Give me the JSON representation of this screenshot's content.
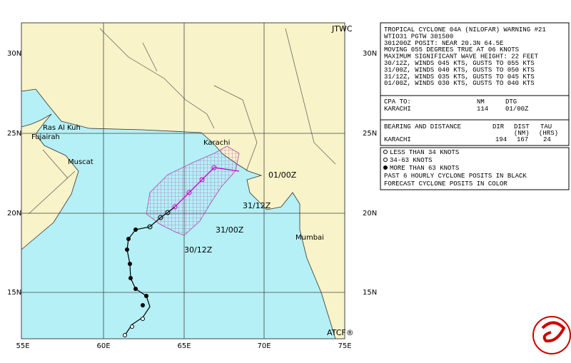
{
  "map": {
    "credit_left": "JTWC",
    "credit_right": "ATCF®",
    "lat_labels": [
      "30N",
      "25N",
      "20N",
      "15N"
    ],
    "lon_labels": [
      "55E",
      "60E",
      "65E",
      "70E",
      "75E"
    ],
    "places": [
      "Ras Al Kuh",
      "Fujairah",
      "Muscat",
      "Karachi",
      "Mumbai"
    ],
    "track_labels": [
      "30/12Z",
      "31/00Z",
      "31/12Z",
      "01/00Z"
    ]
  },
  "info": {
    "lines": [
      "TROPICAL CYCLONE 04A (NILOFAR) WARNING #21",
      "WTIO31 PGTW 301500",
      "301200Z POSIT: NEAR 20.3N 64.5E",
      "MOVING 055 DEGREES TRUE AT 06 KNOTS",
      "MAXIMUM SIGNIFICANT WAVE HEIGHT: 22 FEET",
      "30/12Z, WINDS 045 KTS, GUSTS TO 055 KTS",
      "31/00Z, WINDS 040 KTS, GUSTS TO 050 KTS",
      "31/12Z, WINDS 035 KTS, GUSTS TO 045 KTS",
      "01/00Z, WINDS 030 KTS, GUSTS TO 040 KTS"
    ],
    "cpa": {
      "header": [
        "CPA TO:",
        "NM",
        "DTG"
      ],
      "rows": [
        [
          "KARACHI",
          "114",
          "01/00Z"
        ]
      ]
    },
    "bearing": {
      "header": [
        "BEARING AND DISTANCE",
        "DIR",
        "DIST",
        "TAU"
      ],
      "units": [
        "(NM)",
        "(HRS)"
      ],
      "rows": [
        [
          "KARACHI",
          "194",
          "167",
          "24"
        ]
      ]
    }
  },
  "legend": {
    "items": [
      "LESS THAN 34 KNOTS",
      "34-63 KNOTS",
      "MORE THAN 63 KNOTS",
      "PAST 6 HOURLY CYCLONE POSITS IN BLACK",
      "FORECAST CYCLONE POSITS IN COLOR"
    ]
  }
}
